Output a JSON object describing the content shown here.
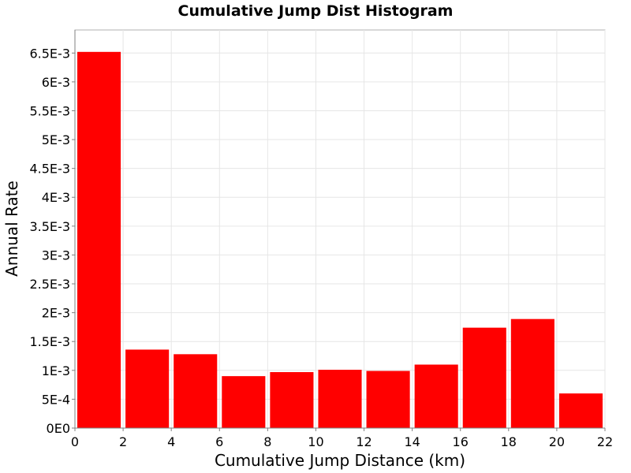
{
  "chart_data": {
    "type": "bar",
    "title": "Cumulative Jump Dist Histogram",
    "xlabel": "Cumulative Jump Distance (km)",
    "ylabel": "Annual Rate",
    "xlim": [
      0,
      22
    ],
    "ylim": [
      0,
      0.0069
    ],
    "grid": true,
    "x_ticks": [
      0,
      2,
      4,
      6,
      8,
      10,
      12,
      14,
      16,
      18,
      20,
      22
    ],
    "x_tick_labels": [
      "0",
      "2",
      "4",
      "6",
      "8",
      "10",
      "12",
      "14",
      "16",
      "18",
      "20",
      "22"
    ],
    "y_ticks": [
      0,
      0.0005,
      0.001,
      0.0015,
      0.002,
      0.0025,
      0.003,
      0.0035,
      0.004,
      0.0045,
      0.005,
      0.0055,
      0.006,
      0.0065
    ],
    "y_tick_labels": [
      "0E0",
      "5E-4",
      "1E-3",
      "1.5E-3",
      "2E-3",
      "2.5E-3",
      "3E-3",
      "3.5E-3",
      "4E-3",
      "4.5E-3",
      "5E-3",
      "5.5E-3",
      "6E-3",
      "6.5E-3"
    ],
    "bar_color": "#ff0000",
    "bins": [
      {
        "x_start": 0,
        "x_end": 2,
        "value": 0.00652
      },
      {
        "x_start": 2,
        "x_end": 4,
        "value": 0.00136
      },
      {
        "x_start": 4,
        "x_end": 6,
        "value": 0.00128
      },
      {
        "x_start": 6,
        "x_end": 8,
        "value": 0.0009
      },
      {
        "x_start": 8,
        "x_end": 10,
        "value": 0.00097
      },
      {
        "x_start": 10,
        "x_end": 12,
        "value": 0.00101
      },
      {
        "x_start": 12,
        "x_end": 14,
        "value": 0.00099
      },
      {
        "x_start": 14,
        "x_end": 16,
        "value": 0.0011
      },
      {
        "x_start": 16,
        "x_end": 18,
        "value": 0.00174
      },
      {
        "x_start": 18,
        "x_end": 20,
        "value": 0.00189
      },
      {
        "x_start": 20,
        "x_end": 22,
        "value": 0.0006
      }
    ]
  }
}
